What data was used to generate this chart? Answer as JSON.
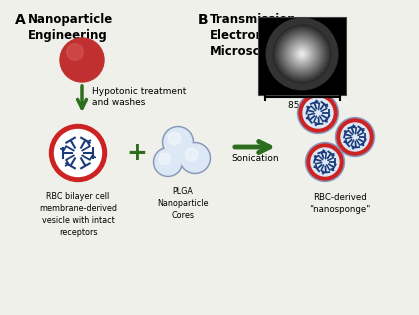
{
  "bg_color": "#f0f0ea",
  "panel_a_label": "A",
  "panel_b_label": "B",
  "title_a": "Nanoparticle\nEngineering",
  "title_b": "Transmission\nElectron\nMicroscopy",
  "scale_bar_text": "85 nm",
  "arrow_text1": "Hypotonic treatment\nand washes",
  "arrow_text2": "Sonication",
  "label_vesicle": "RBC bilayer cell\nmembrane-derived\nvesicle with intact\nreceptors",
  "label_plga": "PLGA\nNanoparticle\nCores",
  "label_nanosponge": "RBC-derived\n\"nanosponge\"",
  "red_color": "#cc2222",
  "blue_color": "#1a3a7a",
  "very_light_blue": "#dce8f5",
  "light_blue_edge": "#8899bb",
  "green_arrow": "#2d6e1e",
  "rbc_red": "#c03030"
}
